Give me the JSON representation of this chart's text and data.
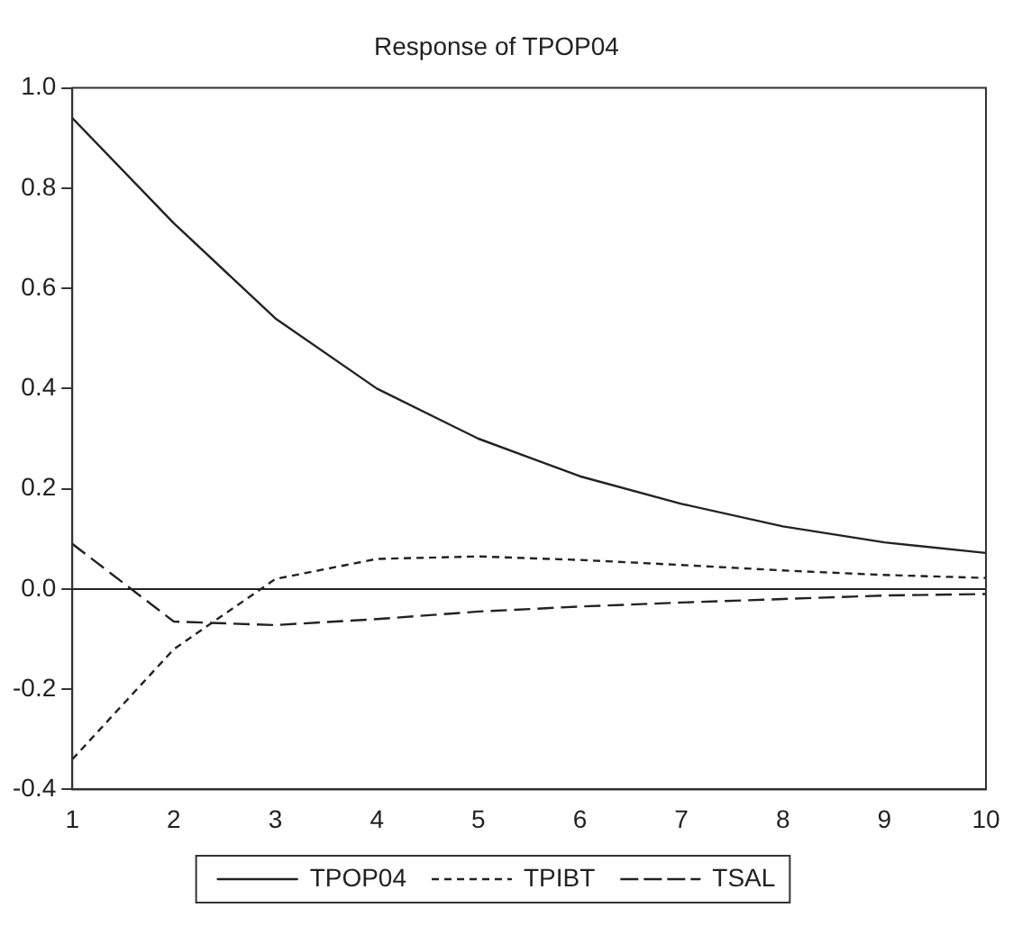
{
  "chart_data": {
    "type": "line",
    "title": "Response of TPOP04",
    "x": [
      1,
      2,
      3,
      4,
      5,
      6,
      7,
      8,
      9,
      10
    ],
    "series": [
      {
        "name": "TPOP04",
        "color": "#222222",
        "line_style": "solid",
        "values": [
          0.94,
          0.73,
          0.54,
          0.4,
          0.3,
          0.225,
          0.17,
          0.125,
          0.093,
          0.072
        ]
      },
      {
        "name": "TPIBT",
        "color": "#222222",
        "line_style": "dotted",
        "values": [
          -0.34,
          -0.12,
          0.02,
          0.06,
          0.065,
          0.058,
          0.048,
          0.037,
          0.028,
          0.022
        ]
      },
      {
        "name": "TSAL",
        "color": "#222222",
        "line_style": "dashed",
        "values": [
          0.09,
          -0.065,
          -0.072,
          -0.06,
          -0.045,
          -0.035,
          -0.027,
          -0.02,
          -0.013,
          -0.01
        ]
      }
    ],
    "xlim": [
      1,
      10
    ],
    "xticks": [
      1,
      2,
      3,
      4,
      5,
      6,
      7,
      8,
      9,
      10
    ],
    "ylim": [
      -0.4,
      1.0
    ],
    "yticks": [
      {
        "value": -0.4,
        "label": "-0.4"
      },
      {
        "value": -0.2,
        "label": "-0.2"
      },
      {
        "value": 0,
        "label": "0.0"
      },
      {
        "value": 0.2,
        "label": "0.2"
      },
      {
        "value": 0.4,
        "label": "0.4"
      },
      {
        "value": 0.6,
        "label": "0.6"
      },
      {
        "value": 0.8,
        "label": "0.8"
      },
      {
        "value": 1,
        "label": "1.0"
      }
    ],
    "ref_lines": [
      {
        "axis": "y",
        "value": 0,
        "color": "#222222"
      }
    ],
    "grid": false,
    "legend": "bottom",
    "marker": "none"
  }
}
